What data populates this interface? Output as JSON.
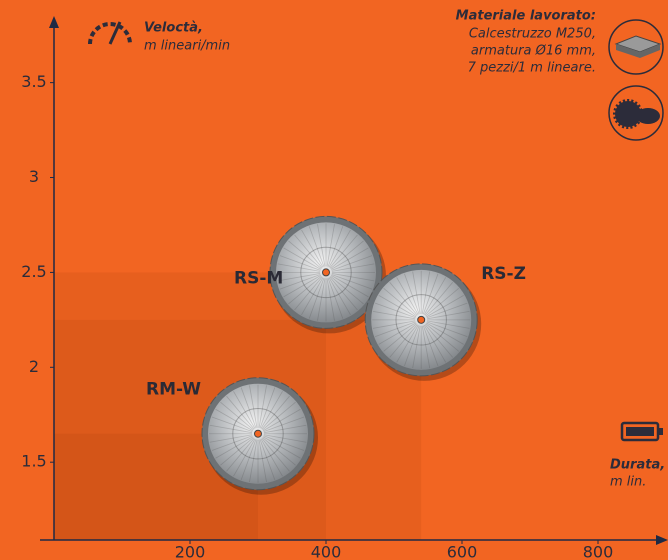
{
  "chart_data": {
    "type": "blade-scatter",
    "y_label": "Veloctà,",
    "y_unit": "m lineari/min",
    "x_label": "Durata,",
    "x_unit": "m lin.",
    "material_title": "Materiale lavorato:",
    "material_lines": [
      "Calcestruzzo M250,",
      "armatura Ø16 mm,",
      "7 pezzi/1 m lineare."
    ],
    "xlim": [
      0,
      900
    ],
    "xticks": [
      200,
      400,
      600,
      800
    ],
    "ylim": [
      1.09,
      3.83
    ],
    "yticks": [
      1.5,
      2,
      2.5,
      3,
      3.5
    ],
    "points": [
      {
        "name": "RS-M",
        "x": 400,
        "y": 2.5
      },
      {
        "name": "RS-Z",
        "x": 540,
        "y": 2.25
      },
      {
        "name": "RM-W",
        "x": 300,
        "y": 1.65
      }
    ]
  }
}
